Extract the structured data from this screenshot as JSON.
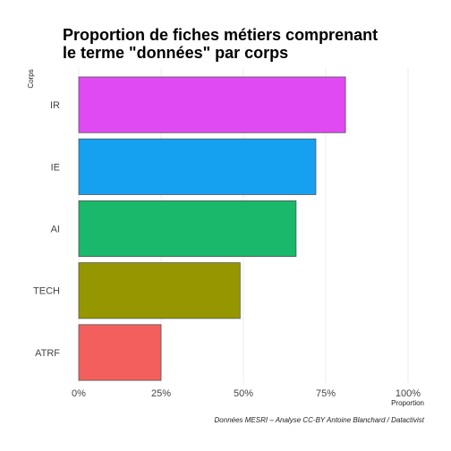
{
  "chart_data": {
    "type": "bar",
    "orientation": "horizontal",
    "title_lines": [
      "Proportion de fiches métiers comprenant",
      "le terme \"données\" par corps"
    ],
    "xlabel": "Proportion",
    "ylabel": "Corps",
    "categories": [
      "IR",
      "IE",
      "AI",
      "TECH",
      "ATRF"
    ],
    "values": [
      0.81,
      0.72,
      0.66,
      0.49,
      0.25
    ],
    "colors": [
      "#DF4AF2",
      "#16A0F0",
      "#19B86B",
      "#969600",
      "#F25F5C"
    ],
    "xlim": [
      0,
      1
    ],
    "x_ticks": [
      {
        "value": 0,
        "label": "0%"
      },
      {
        "value": 0.25,
        "label": "25%"
      },
      {
        "value": 0.5,
        "label": "50%"
      },
      {
        "value": 0.75,
        "label": "75%"
      },
      {
        "value": 1,
        "label": "100%"
      }
    ],
    "grid": true,
    "caption": "Données MESRI – Analyse CC-BY Antoine Blanchard / Datactivist"
  }
}
